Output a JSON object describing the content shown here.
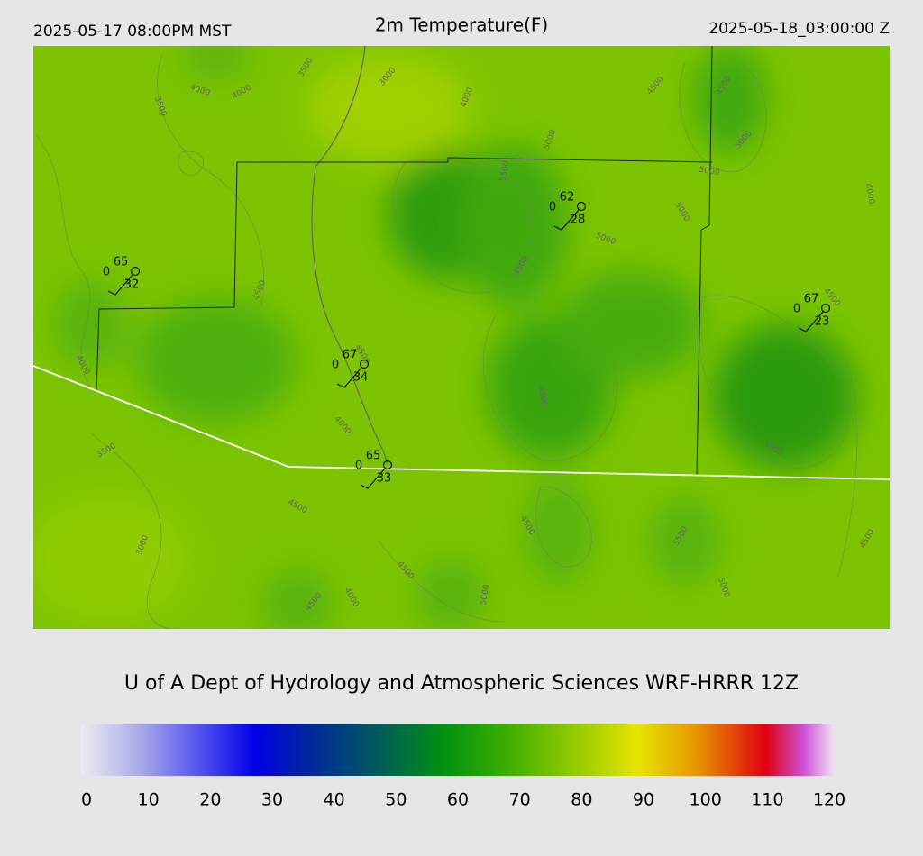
{
  "header": {
    "left": "2025-05-17 08:00PM MST",
    "title": "2m Temperature(F)",
    "right": "2025-05-18_03:00:00 Z"
  },
  "map": {
    "contour_labels": [
      3500,
      3000,
      4000,
      4000,
      3500,
      4000,
      4500,
      4500,
      5000,
      5000,
      5000,
      5500,
      5000,
      5000,
      4000,
      4500,
      4500,
      4500,
      4000,
      4500,
      4000,
      4500,
      3500,
      5500,
      4500,
      4500,
      5500,
      4500,
      3000,
      4500,
      4500,
      4000,
      5000,
      5000
    ],
    "stations": [
      {
        "temp": 65,
        "left": 0,
        "bottom": 32
      },
      {
        "temp": 62,
        "left": 0,
        "bottom": 28
      },
      {
        "temp": 67,
        "left": 0,
        "bottom": 34
      },
      {
        "temp": 65,
        "left": 0,
        "bottom": 33
      },
      {
        "temp": 67,
        "left": 0,
        "bottom": 23
      }
    ]
  },
  "credit": "U of A Dept of Hydrology and Atmospheric Sciences WRF-HRRR 12Z",
  "colorbar": {
    "range": [
      0,
      120
    ],
    "ticks": [
      0,
      10,
      20,
      30,
      40,
      50,
      60,
      70,
      80,
      90,
      100,
      110,
      120
    ]
  }
}
